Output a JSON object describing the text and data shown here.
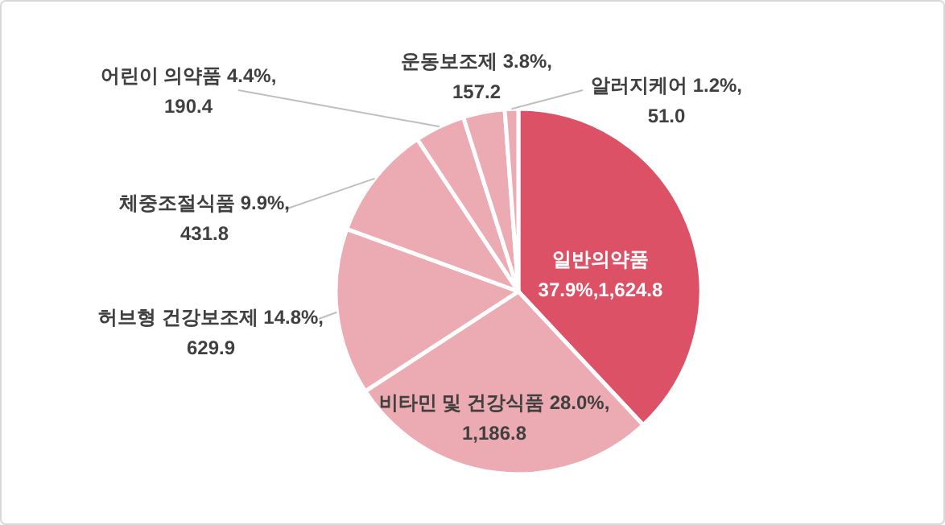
{
  "chart_data": {
    "type": "pie",
    "categories": [
      "일반의약품",
      "비타민 및 건강식품",
      "허브형 건강보조제",
      "체중조절식품",
      "어린이 의약품",
      "운동보조제",
      "알러지케어"
    ],
    "values": [
      1624.8,
      1186.8,
      629.9,
      431.8,
      190.4,
      157.2,
      51.0
    ],
    "value_labels": [
      "37.9%,1,624.8",
      "28.0%, 1,186.8",
      "14.8%, 629.9",
      "9.9%, 431.8",
      "4.4%, 190.4",
      "3.8%, 157.2",
      "1.2%, 51.0"
    ],
    "colors": [
      "#dc5166",
      "#ecaab2",
      "#ecaab2",
      "#ecaab2",
      "#ecaab2",
      "#ecaab2",
      "#ecaab2"
    ]
  }
}
